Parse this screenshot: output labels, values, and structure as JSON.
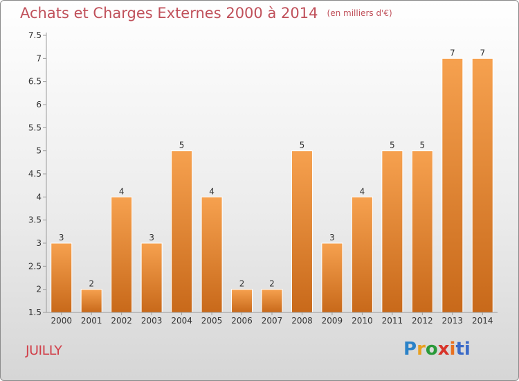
{
  "title": "Achats et Charges Externes 2000 à 2014",
  "subtitle": "(en milliers d'€)",
  "commune": "JUILLY",
  "logo": {
    "letters": [
      "P",
      "r",
      "o",
      "x",
      "i",
      "ti"
    ],
    "colors": [
      "#2a82c8",
      "#e8a020",
      "#2a9a3a",
      "#d8342a",
      "#e87020",
      "#3a6ac8"
    ]
  },
  "colors": {
    "bar_top": "#f6a14f",
    "bar_bottom": "#c8691a",
    "title": "#c0505a",
    "commune": "#d1404a"
  },
  "chart_data": {
    "type": "bar",
    "title": "Achats et Charges Externes 2000 à 2014",
    "subtitle": "(en milliers d'€)",
    "categories": [
      "2000",
      "2001",
      "2002",
      "2003",
      "2004",
      "2005",
      "2006",
      "2007",
      "2008",
      "2009",
      "2010",
      "2011",
      "2012",
      "2013",
      "2014"
    ],
    "values": [
      3,
      2,
      4,
      3,
      5,
      4,
      2,
      2,
      5,
      3,
      4,
      5,
      5,
      7,
      7
    ],
    "data_labels": [
      "3",
      "2",
      "4",
      "3",
      "5",
      "4",
      "2",
      "2",
      "5",
      "3",
      "4",
      "5",
      "5",
      "7",
      "7"
    ],
    "ylim": [
      1.5,
      7.5
    ],
    "yticks": [
      "1.5",
      "2",
      "2.5",
      "3",
      "3.5",
      "4",
      "4.5",
      "5",
      "5.5",
      "6",
      "6.5",
      "7",
      "7.5"
    ],
    "grid": false,
    "xlabel": "",
    "ylabel": ""
  }
}
